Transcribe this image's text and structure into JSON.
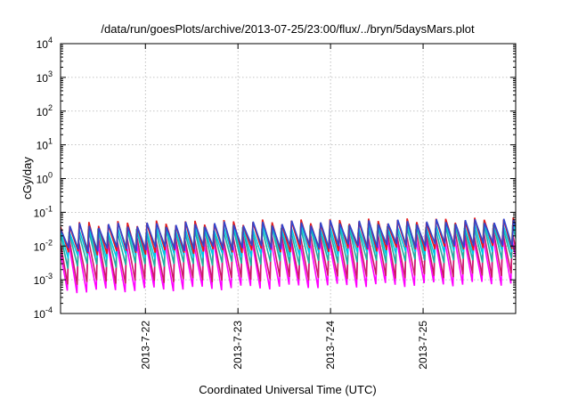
{
  "chart_data": {
    "type": "line",
    "title": "/data/run/goesPlots/archive/2013-07-25/23:00/flux/../bryn/5daysMars.plot",
    "xlabel": "Coordinated Universal Time (UTC)",
    "ylabel": "cGy/day",
    "y_scale": "log",
    "ylim": [
      0.0001,
      10000
    ],
    "xlim": [
      "2013-07-21 02:00",
      "2013-07-26 00:00"
    ],
    "grid": true,
    "legend": "none",
    "y_ticks": [
      {
        "value": 0.0001,
        "base": "10",
        "exp": "-4"
      },
      {
        "value": 0.001,
        "base": "10",
        "exp": "-3"
      },
      {
        "value": 0.01,
        "base": "10",
        "exp": "-2"
      },
      {
        "value": 0.1,
        "base": "10",
        "exp": "-1"
      },
      {
        "value": 1,
        "base": "10",
        "exp": "0"
      },
      {
        "value": 10,
        "base": "10",
        "exp": "1"
      },
      {
        "value": 100,
        "base": "10",
        "exp": "2"
      },
      {
        "value": 1000,
        "base": "10",
        "exp": "3"
      },
      {
        "value": 10000,
        "base": "10",
        "exp": "4"
      }
    ],
    "x_ticks": [
      {
        "value": "2013-07-22 00:00",
        "label": "2013-7-22"
      },
      {
        "value": "2013-07-23 00:00",
        "label": "2013-7-23"
      },
      {
        "value": "2013-07-24 00:00",
        "label": "2013-7-24"
      },
      {
        "value": "2013-07-25 00:00",
        "label": "2013-7-25"
      }
    ],
    "series_pattern": {
      "waveform": "sawtooth",
      "period_hours": 2.5,
      "shape": "sharp rise to peak, then decay to trough"
    },
    "series": [
      {
        "color": "#ff00ff",
        "peak_start": 0.012,
        "peak_end": 0.02,
        "trough_start": 0.00045,
        "trough_end": 0.0008
      },
      {
        "color": "#cc1a66",
        "peak_start": 0.018,
        "peak_end": 0.03,
        "trough_start": 0.0008,
        "trough_end": 0.0014
      },
      {
        "color": "#20b0a0",
        "peak_start": 0.028,
        "peak_end": 0.042,
        "trough_start": 0.0025,
        "trough_end": 0.0038
      },
      {
        "color": "#00c8e8",
        "peak_start": 0.032,
        "peak_end": 0.048,
        "trough_start": 0.0045,
        "trough_end": 0.0065
      },
      {
        "color": "#e31a1c",
        "peak_start": 0.045,
        "peak_end": 0.06,
        "trough_start": 0.006,
        "trough_end": 0.009
      },
      {
        "color": "#3344cc",
        "peak_start": 0.04,
        "peak_end": 0.056,
        "trough_start": 0.0075,
        "trough_end": 0.011
      }
    ]
  }
}
